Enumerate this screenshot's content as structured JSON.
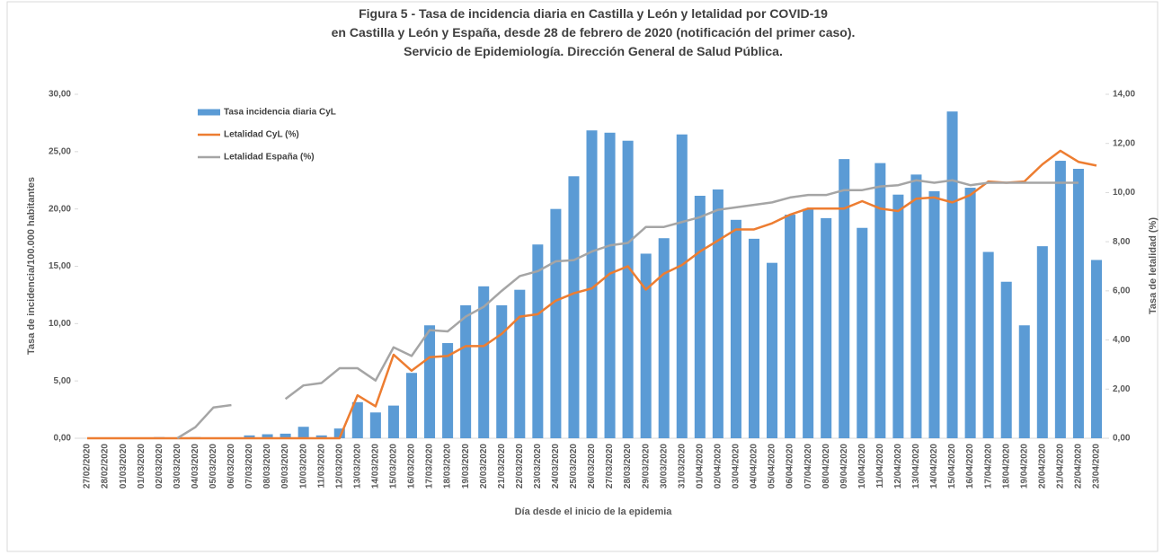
{
  "chart_data": {
    "type": "bar_line",
    "title": [
      "Figura 5 - Tasa de incidencia diaria en Castilla y León y letalidad por COVID-19",
      "en Castilla y León y España, desde 28 de febrero de 2020 (notificación del primer caso).",
      "Servicio de Epidemiología. Dirección General de Salud Pública."
    ],
    "xlabel": "Día desde el inicio de la epidemia",
    "ylabel": "Tasa de incidencia/100.000 habitantes",
    "y2label": "Tasa de letalidad (%)",
    "categories": [
      "27/02/2020",
      "28/02/2020",
      "01/03/2020",
      "01/03/2020",
      "02/03/2020",
      "03/03/2020",
      "04/03/2020",
      "05/03/2020",
      "06/03/2020",
      "07/03/2020",
      "08/03/2020",
      "09/03/2020",
      "10/03/2020",
      "11/03/2020",
      "12/03/2020",
      "13/03/2020",
      "14/03/2020",
      "15/03/2020",
      "16/03/2020",
      "17/03/2020",
      "18/03/2020",
      "19/03/2020",
      "20/03/2020",
      "21/03/2020",
      "22/03/2020",
      "23/03/2020",
      "24/03/2020",
      "25/03/2020",
      "26/03/2020",
      "27/03/2020",
      "28/03/2020",
      "29/03/2020",
      "30/03/2020",
      "31/03/2020",
      "01/04/2020",
      "02/04/2020",
      "03/04/2020",
      "04/04/2020",
      "05/04/2020",
      "06/04/2020",
      "07/04/2020",
      "08/04/2020",
      "09/04/2020",
      "10/04/2020",
      "11/04/2020",
      "12/04/2020",
      "13/04/2020",
      "14/04/2020",
      "15/04/2020",
      "16/04/2020",
      "17/04/2020",
      "18/04/2020",
      "19/04/2020",
      "20/04/2020",
      "21/04/2020",
      "22/04/2020",
      "23/04/2020"
    ],
    "series": [
      {
        "name": "Tasa incidencia diaria CyL",
        "type": "bar",
        "color": "#5b9bd5",
        "values": [
          0,
          0,
          0,
          0,
          0.1,
          0,
          0.1,
          0,
          0,
          0.25,
          0.35,
          0.4,
          1.0,
          0.25,
          0.85,
          3.15,
          2.25,
          2.85,
          5.7,
          9.85,
          8.3,
          11.6,
          13.25,
          11.6,
          12.95,
          16.9,
          20.0,
          22.85,
          26.85,
          26.65,
          25.95,
          16.1,
          17.45,
          26.5,
          21.15,
          21.7,
          19.05,
          17.4,
          15.3,
          19.5,
          20.0,
          19.2,
          24.35,
          18.35,
          24.0,
          21.25,
          23.0,
          21.55,
          28.5,
          21.85,
          16.25,
          13.65,
          9.85,
          16.75,
          24.2,
          23.5,
          15.55
        ]
      },
      {
        "name": "Letalidad CyL (%)",
        "type": "line",
        "axis": "y2",
        "color": "#ed7d31",
        "values": [
          0,
          0,
          0,
          0,
          0,
          0,
          0,
          0,
          0,
          0,
          0,
          0,
          0,
          0,
          0,
          1.75,
          1.3,
          3.4,
          2.75,
          3.3,
          3.35,
          3.75,
          3.75,
          4.25,
          4.95,
          5.05,
          5.6,
          5.9,
          6.1,
          6.7,
          7.0,
          6.05,
          6.7,
          7.05,
          7.6,
          8.05,
          8.5,
          8.5,
          8.75,
          9.1,
          9.35,
          9.35,
          9.35,
          9.65,
          9.35,
          9.25,
          9.75,
          9.8,
          9.6,
          9.9,
          10.45,
          10.4,
          10.45,
          11.15,
          11.7,
          11.25,
          11.1
        ]
      },
      {
        "name": "Letalidad España (%)",
        "type": "line",
        "axis": "y2",
        "color": "#a5a5a5",
        "values": [
          null,
          null,
          null,
          null,
          null,
          0,
          0.45,
          1.25,
          1.35,
          null,
          null,
          1.6,
          2.15,
          2.25,
          2.85,
          2.85,
          2.35,
          3.7,
          3.35,
          4.4,
          4.35,
          4.95,
          5.35,
          6.0,
          6.6,
          6.8,
          7.2,
          7.25,
          7.6,
          7.85,
          7.95,
          8.6,
          8.6,
          8.8,
          9.0,
          9.3,
          9.4,
          9.5,
          9.6,
          9.8,
          9.9,
          9.9,
          10.1,
          10.1,
          10.25,
          10.3,
          10.5,
          10.4,
          10.5,
          10.3,
          10.4,
          10.4,
          10.4,
          10.4,
          10.4,
          10.4,
          null
        ]
      }
    ],
    "ylim": [
      0,
      30
    ],
    "yticks": [
      {
        "value": 0,
        "label": "0,00"
      },
      {
        "value": 5,
        "label": "5,00"
      },
      {
        "value": 10,
        "label": "10,00"
      },
      {
        "value": 15,
        "label": "15,00"
      },
      {
        "value": 20,
        "label": "20,00"
      },
      {
        "value": 25,
        "label": "25,00"
      },
      {
        "value": 30,
        "label": "30,00"
      }
    ],
    "y2lim": [
      0,
      14
    ],
    "y2ticks": [
      {
        "value": 0,
        "label": "0,00"
      },
      {
        "value": 2,
        "label": "2,00"
      },
      {
        "value": 4,
        "label": "4,00"
      },
      {
        "value": 6,
        "label": "6,00"
      },
      {
        "value": 8,
        "label": "8,00"
      },
      {
        "value": 10,
        "label": "10,00"
      },
      {
        "value": 12,
        "label": "12,00"
      },
      {
        "value": 14,
        "label": "14,00"
      }
    ],
    "legend": "upper left"
  }
}
